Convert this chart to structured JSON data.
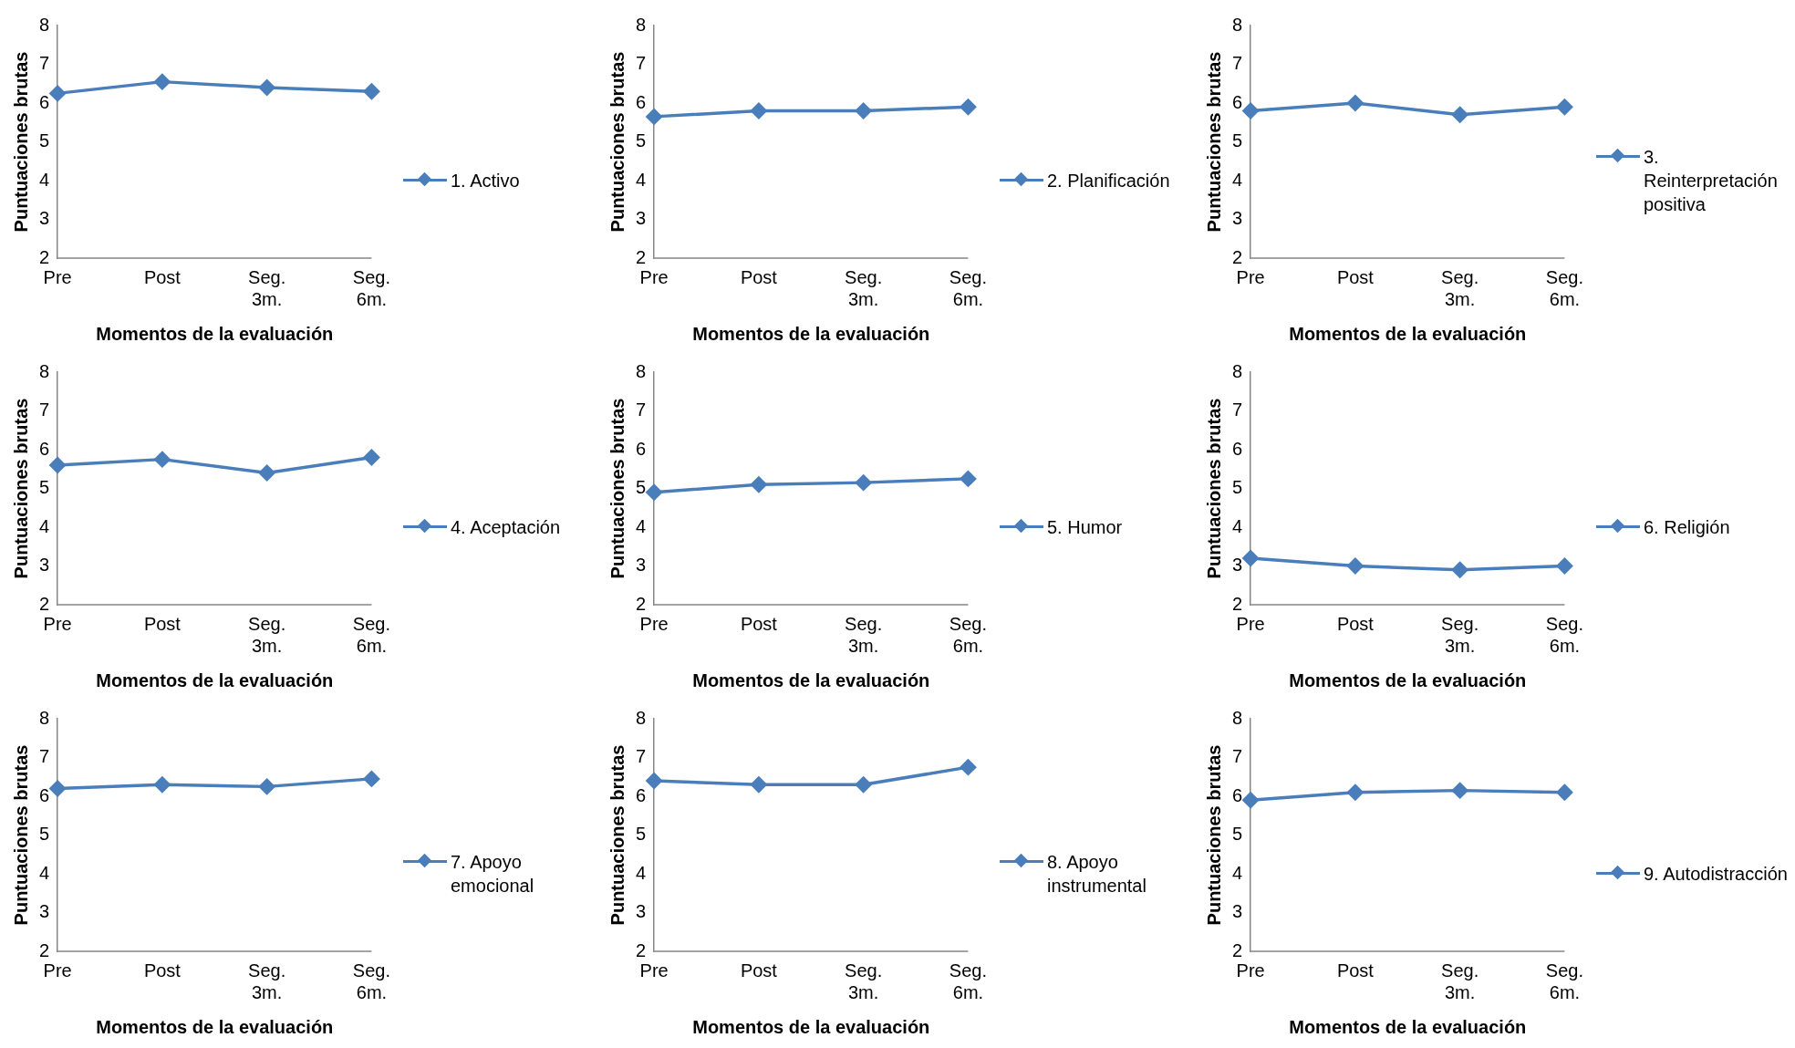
{
  "chart_data": [
    {
      "type": "line",
      "categories": [
        "Pre",
        "Post",
        "Seg. 3m.",
        "Seg. 6m."
      ],
      "series": [
        {
          "name": "1. Activo",
          "color": "#4a7ebb",
          "values": [
            6.25,
            6.55,
            6.4,
            6.3
          ]
        }
      ],
      "xlabel": "Momentos de la evaluación",
      "ylabel": "Puntuaciones brutas",
      "ylim": [
        2,
        8
      ],
      "yticks": [
        2,
        3,
        4,
        5,
        6,
        7,
        8
      ],
      "legend": "right",
      "marker": "diamond"
    },
    {
      "type": "line",
      "categories": [
        "Pre",
        "Post",
        "Seg. 3m.",
        "Seg. 6m."
      ],
      "series": [
        {
          "name": "2. Planificación",
          "color": "#4a7ebb",
          "values": [
            5.65,
            5.8,
            5.8,
            5.9
          ]
        }
      ],
      "xlabel": "Momentos de la evaluación",
      "ylabel": "Puntuaciones brutas",
      "ylim": [
        2,
        8
      ],
      "yticks": [
        2,
        3,
        4,
        5,
        6,
        7,
        8
      ],
      "legend": "right",
      "marker": "diamond"
    },
    {
      "type": "line",
      "categories": [
        "Pre",
        "Post",
        "Seg. 3m.",
        "Seg. 6m."
      ],
      "series": [
        {
          "name": "3. Reinterpretación positiva",
          "color": "#4a7ebb",
          "values": [
            5.8,
            6.0,
            5.7,
            5.9
          ]
        }
      ],
      "xlabel": "Momentos de la evaluación",
      "ylabel": "Puntuaciones brutas",
      "ylim": [
        2,
        8
      ],
      "yticks": [
        2,
        3,
        4,
        5,
        6,
        7,
        8
      ],
      "legend": "right",
      "marker": "diamond"
    },
    {
      "type": "line",
      "categories": [
        "Pre",
        "Post",
        "Seg. 3m.",
        "Seg. 6m."
      ],
      "series": [
        {
          "name": "4. Aceptación",
          "color": "#4a7ebb",
          "values": [
            5.6,
            5.75,
            5.4,
            5.8
          ]
        }
      ],
      "xlabel": "Momentos de la evaluación",
      "ylabel": "Puntuaciones brutas",
      "ylim": [
        2,
        8
      ],
      "yticks": [
        2,
        3,
        4,
        5,
        6,
        7,
        8
      ],
      "legend": "right",
      "marker": "diamond"
    },
    {
      "type": "line",
      "categories": [
        "Pre",
        "Post",
        "Seg. 3m.",
        "Seg. 6m."
      ],
      "series": [
        {
          "name": "5. Humor",
          "color": "#4a7ebb",
          "values": [
            4.9,
            5.1,
            5.15,
            5.25
          ]
        }
      ],
      "xlabel": "Momentos de la evaluación",
      "ylabel": "Puntuaciones brutas",
      "ylim": [
        2,
        8
      ],
      "yticks": [
        2,
        3,
        4,
        5,
        6,
        7,
        8
      ],
      "legend": "right",
      "marker": "diamond"
    },
    {
      "type": "line",
      "categories": [
        "Pre",
        "Post",
        "Seg. 3m.",
        "Seg. 6m."
      ],
      "series": [
        {
          "name": "6. Religión",
          "color": "#4a7ebb",
          "values": [
            3.2,
            3.0,
            2.9,
            3.0
          ]
        }
      ],
      "xlabel": "Momentos de la evaluación",
      "ylabel": "Puntuaciones brutas",
      "ylim": [
        2,
        8
      ],
      "yticks": [
        2,
        3,
        4,
        5,
        6,
        7,
        8
      ],
      "legend": "right",
      "marker": "diamond"
    },
    {
      "type": "line",
      "categories": [
        "Pre",
        "Post",
        "Seg. 3m.",
        "Seg. 6m."
      ],
      "series": [
        {
          "name": "7. Apoyo emocional",
          "color": "#4a7ebb",
          "values": [
            6.2,
            6.3,
            6.25,
            6.45
          ]
        }
      ],
      "xlabel": "Momentos de la evaluación",
      "ylabel": "Puntuaciones brutas",
      "ylim": [
        2,
        8
      ],
      "yticks": [
        2,
        3,
        4,
        5,
        6,
        7,
        8
      ],
      "legend": "right",
      "marker": "diamond"
    },
    {
      "type": "line",
      "categories": [
        "Pre",
        "Post",
        "Seg. 3m.",
        "Seg. 6m."
      ],
      "series": [
        {
          "name": "8. Apoyo instrumental",
          "color": "#4a7ebb",
          "values": [
            6.4,
            6.3,
            6.3,
            6.75
          ]
        }
      ],
      "xlabel": "Momentos de la evaluación",
      "ylabel": "Puntuaciones brutas",
      "ylim": [
        2,
        8
      ],
      "yticks": [
        2,
        3,
        4,
        5,
        6,
        7,
        8
      ],
      "legend": "right",
      "marker": "diamond"
    },
    {
      "type": "line",
      "categories": [
        "Pre",
        "Post",
        "Seg. 3m.",
        "Seg. 6m."
      ],
      "series": [
        {
          "name": "9. Autodistracción",
          "color": "#4a7ebb",
          "values": [
            5.9,
            6.1,
            6.15,
            6.1
          ]
        }
      ],
      "xlabel": "Momentos de la evaluación",
      "ylabel": "Puntuaciones brutas",
      "ylim": [
        2,
        8
      ],
      "yticks": [
        2,
        3,
        4,
        5,
        6,
        7,
        8
      ],
      "legend": "right",
      "marker": "diamond"
    }
  ]
}
